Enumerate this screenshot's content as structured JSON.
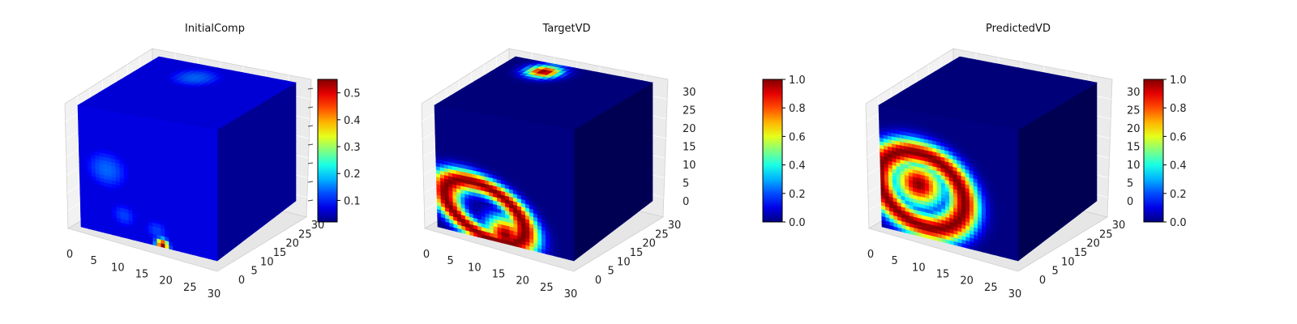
{
  "chart_data": [
    {
      "type": "heatmap",
      "title": "InitialComp",
      "x_ticks": [
        "0",
        "5",
        "10",
        "15",
        "20",
        "25",
        "30"
      ],
      "y_ticks": [
        "0",
        "5",
        "10",
        "15",
        "20",
        "25",
        "30"
      ],
      "z_ticks": [],
      "colorbar": {
        "ticks": [
          "0.1",
          "0.2",
          "0.3",
          "0.4",
          "0.5"
        ],
        "range": [
          0.02,
          0.55
        ],
        "colormap": "jet"
      },
      "front_face_blobs": [
        {
          "u": 0.2,
          "v": 0.52,
          "r": 0.2,
          "value": 0.14
        },
        {
          "u": 0.32,
          "v": 0.18,
          "r": 0.13,
          "value": 0.12
        },
        {
          "u": 0.56,
          "v": 0.12,
          "r": 0.12,
          "value": 0.12
        },
        {
          "u": 0.6,
          "v": 0.02,
          "r": 0.05,
          "value": 0.55
        }
      ],
      "top_face_blobs": [
        {
          "u": 0.4,
          "v": 0.78,
          "r": 0.22,
          "value": 0.14
        }
      ]
    },
    {
      "type": "heatmap",
      "title": "TargetVD",
      "x_ticks": [
        "0",
        "5",
        "10",
        "15",
        "20",
        "25",
        "30"
      ],
      "y_ticks": [
        "0",
        "5",
        "10",
        "15",
        "20",
        "25",
        "30"
      ],
      "z_ticks": [
        "0",
        "5",
        "10",
        "15",
        "20",
        "25",
        "30"
      ],
      "colorbar": {
        "ticks": [
          "0.0",
          "0.2",
          "0.4",
          "0.6",
          "0.8",
          "1.0"
        ],
        "range": [
          0.0,
          1.0
        ],
        "colormap": "jet"
      },
      "front_face_blobs": [
        {
          "type": "ring",
          "u": 0.35,
          "v": 0.22,
          "rx": 0.31,
          "ry": 0.19,
          "rot": -0.45,
          "thickness": 0.11,
          "value": 1.0
        },
        {
          "u": 0.5,
          "v": 0.07,
          "r": 0.14,
          "value": 1.0
        }
      ],
      "top_face_blobs": [
        {
          "u": 0.3,
          "v": 0.85,
          "r": 0.11,
          "value": 1.0
        }
      ]
    },
    {
      "type": "heatmap",
      "title": "PredictedVD",
      "x_ticks": [
        "0",
        "5",
        "10",
        "15",
        "20",
        "25",
        "30"
      ],
      "y_ticks": [
        "0",
        "5",
        "10",
        "15",
        "20",
        "25",
        "30"
      ],
      "z_ticks": [
        "0",
        "5",
        "10",
        "15",
        "20",
        "25",
        "30"
      ],
      "colorbar": {
        "ticks": [
          "0.0",
          "0.2",
          "0.4",
          "0.6",
          "0.8",
          "1.0"
        ],
        "range": [
          0.0,
          1.0
        ],
        "colormap": "jet"
      },
      "front_face_blobs": [
        {
          "type": "ring",
          "u": 0.3,
          "v": 0.38,
          "rx": 0.32,
          "ry": 0.28,
          "rot": -0.55,
          "thickness": 0.15,
          "value": 1.0
        },
        {
          "u": 0.28,
          "v": 0.42,
          "r": 0.17,
          "value": 1.0
        }
      ],
      "top_face_blobs": []
    }
  ]
}
